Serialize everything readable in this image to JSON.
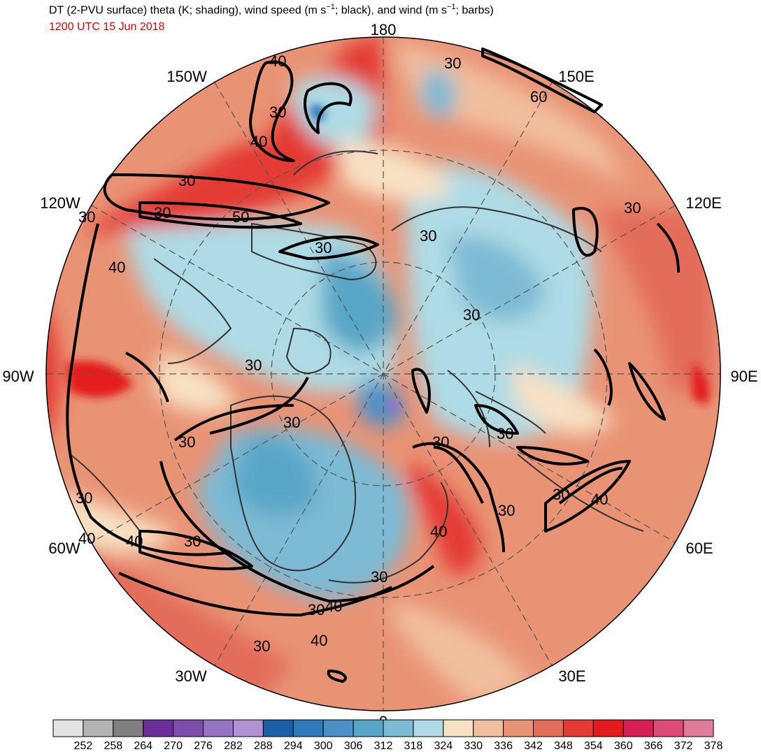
{
  "title": {
    "main": "DT (2-PVU surface) theta (K; shading), wind speed (m s",
    "sup1": "−1",
    "mid": "; black), and wind (m s",
    "sup2": "−1",
    "tail": "; barbs)"
  },
  "subtitle": "1200 UTC 15 Jun 2018",
  "longitude_labels": {
    "n180": "180",
    "e150": "150E",
    "e120": "120E",
    "e90": "90E",
    "e60": "60E",
    "e30": "30E",
    "s0": "0",
    "w30": "30W",
    "w60": "60W",
    "w90": "90W",
    "w120": "120W",
    "w150": "150W"
  },
  "contour_labels": {
    "a": "40",
    "b": "30",
    "c": "60",
    "d": "30",
    "e": "40",
    "f": "30",
    "g": "30",
    "h": "50",
    "i": "30",
    "j": "30",
    "k": "30",
    "l": "40",
    "m": "30",
    "n": "30",
    "o": "30",
    "p": "30",
    "q": "30",
    "r": "30",
    "s": "40",
    "t": "30",
    "u": "40",
    "v": "40",
    "w": "30",
    "x": "40",
    "y": "30",
    "z": "30",
    "aa": "30",
    "ab": "40",
    "ac": "30",
    "ad": "30",
    "ae": "40",
    "af": "30"
  },
  "colorbar": {
    "ticks": [
      "252",
      "258",
      "264",
      "270",
      "276",
      "282",
      "288",
      "294",
      "300",
      "306",
      "312",
      "318",
      "324",
      "330",
      "336",
      "342",
      "348",
      "354",
      "360",
      "366",
      "372",
      "378"
    ],
    "colors": [
      "#e3e3e3",
      "#b3b3b3",
      "#808080",
      "#6b2e9b",
      "#7e4cab",
      "#9673c3",
      "#b193d4",
      "#1a5fa8",
      "#2f79bd",
      "#4d90c8",
      "#58a6c7",
      "#7dbad4",
      "#aedbe5",
      "#f8e1c3",
      "#f1bf9e",
      "#e99375",
      "#e36c5a",
      "#e43a36",
      "#e41a1c",
      "#d81f52",
      "#df4b78",
      "#e07b9b"
    ]
  }
}
